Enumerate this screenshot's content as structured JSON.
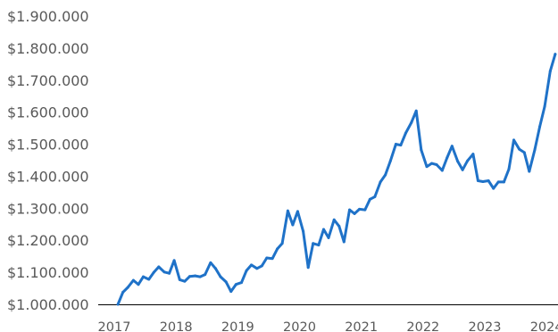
{
  "chart_data": {
    "type": "line",
    "title": "",
    "xlabel": "",
    "ylabel": "",
    "line_color": "#1f72c8",
    "axis_color": "#000000",
    "grid": false,
    "legend": "none",
    "xlim": [
      2017.0,
      2024.2
    ],
    "ylim": [
      1000000,
      1900000
    ],
    "y_ticks": [
      1000000,
      1100000,
      1200000,
      1300000,
      1400000,
      1500000,
      1600000,
      1700000,
      1800000,
      1900000
    ],
    "y_tick_labels": [
      "$1.000.000",
      "$1.100.000",
      "$1.200.000",
      "$1.300.000",
      "$1.400.000",
      "$1.500.000",
      "$1.600.000",
      "$1.700.000",
      "$1.800.000",
      "$1.900.000"
    ],
    "x_ticks": [
      2017,
      2018,
      2019,
      2020,
      2021,
      2022,
      2023,
      2024
    ],
    "x_tick_labels": [
      "2017",
      "2018",
      "2019",
      "2020",
      "2021",
      "2022",
      "2023",
      "2024"
    ],
    "series": [
      {
        "x": [
          2017.06,
          2017.14,
          2017.22,
          2017.31,
          2017.39,
          2017.47,
          2017.56,
          2017.64,
          2017.72,
          2017.81,
          2017.89,
          2017.97,
          2018.06,
          2018.14,
          2018.22,
          2018.31,
          2018.39,
          2018.47,
          2018.56,
          2018.64,
          2018.72,
          2018.81,
          2018.89,
          2018.97,
          2019.06,
          2019.14,
          2019.22,
          2019.31,
          2019.39,
          2019.47,
          2019.56,
          2019.64,
          2019.72,
          2019.81,
          2019.89,
          2019.97,
          2020.06,
          2020.14,
          2020.22,
          2020.31,
          2020.39,
          2020.47,
          2020.56,
          2020.64,
          2020.72,
          2020.81,
          2020.89,
          2020.97,
          2021.06,
          2021.14,
          2021.22,
          2021.31,
          2021.39,
          2021.47,
          2021.56,
          2021.64,
          2021.72,
          2021.81,
          2021.89,
          2021.97,
          2022.06,
          2022.14,
          2022.22,
          2022.31,
          2022.39,
          2022.47,
          2022.56,
          2022.64,
          2022.72,
          2022.81,
          2022.89,
          2022.97,
          2023.06,
          2023.14,
          2023.22,
          2023.31,
          2023.39,
          2023.47,
          2023.56,
          2023.64,
          2023.72,
          2023.81,
          2023.89,
          2023.97,
          2024.06,
          2024.14
        ],
        "y": [
          1000000,
          1038000,
          1053000,
          1075000,
          1062000,
          1086000,
          1078000,
          1100000,
          1117000,
          1101000,
          1097000,
          1137000,
          1077000,
          1072000,
          1087000,
          1089000,
          1086000,
          1093000,
          1130000,
          1112000,
          1086000,
          1070000,
          1040000,
          1062000,
          1068000,
          1105000,
          1123000,
          1112000,
          1120000,
          1145000,
          1143000,
          1173000,
          1190000,
          1292000,
          1248000,
          1290000,
          1228000,
          1115000,
          1190000,
          1185000,
          1234000,
          1208000,
          1264000,
          1244000,
          1195000,
          1295000,
          1283000,
          1297000,
          1295000,
          1328000,
          1336000,
          1382000,
          1404000,
          1447000,
          1500000,
          1497000,
          1535000,
          1567000,
          1604000,
          1482000,
          1430000,
          1440000,
          1436000,
          1418000,
          1458000,
          1494000,
          1447000,
          1420000,
          1448000,
          1469000,
          1386000,
          1383000,
          1386000,
          1362000,
          1382000,
          1382000,
          1422000,
          1513000,
          1484000,
          1474000,
          1415000,
          1483000,
          1555000,
          1618000,
          1728000,
          1781000
        ]
      }
    ]
  }
}
